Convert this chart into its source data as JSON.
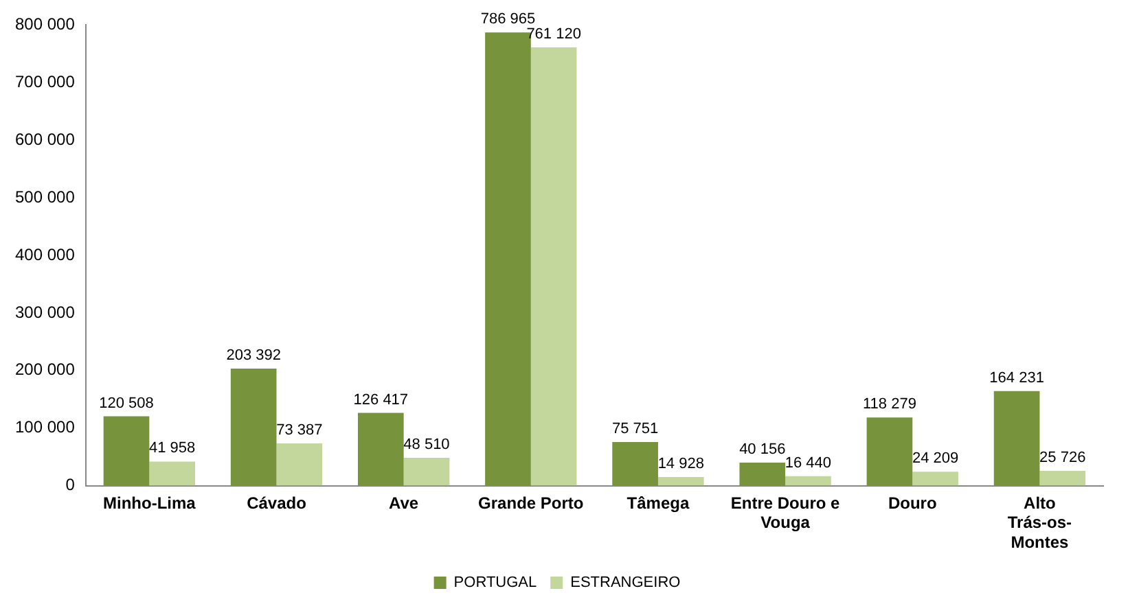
{
  "chart_data": {
    "type": "bar",
    "categories": [
      "Minho-Lima",
      "Cávado",
      "Ave",
      "Grande Porto",
      "Tâmega",
      "Entre Douro e Vouga",
      "Douro",
      "Alto Trás-os-Montes"
    ],
    "series": [
      {
        "name": "PORTUGAL",
        "color": "#77933c",
        "values": [
          120508,
          203392,
          126417,
          786965,
          75751,
          40156,
          118279,
          164231
        ],
        "value_labels": [
          "120 508",
          "203 392",
          "126 417",
          "786 965",
          "75 751",
          "40 156",
          "118 279",
          "164 231"
        ]
      },
      {
        "name": "ESTRANGEIRO",
        "color": "#c3d69b",
        "values": [
          41958,
          73387,
          48510,
          761120,
          14928,
          16440,
          24209,
          25726
        ],
        "value_labels": [
          "41 958",
          "73 387",
          "48 510",
          "761 120",
          "14 928",
          "16 440",
          "24 209",
          "25 726"
        ]
      }
    ],
    "ylim": [
      0,
      800000
    ],
    "yticks": [
      {
        "value": 0,
        "label": "0"
      },
      {
        "value": 100000,
        "label": "100 000"
      },
      {
        "value": 200000,
        "label": "200 000"
      },
      {
        "value": 300000,
        "label": "300 000"
      },
      {
        "value": 400000,
        "label": "400 000"
      },
      {
        "value": 500000,
        "label": "500 000"
      },
      {
        "value": 600000,
        "label": "600 000"
      },
      {
        "value": 700000,
        "label": "700 000"
      },
      {
        "value": 800000,
        "label": "800 000"
      }
    ],
    "grid": false,
    "legend": "bottom"
  }
}
